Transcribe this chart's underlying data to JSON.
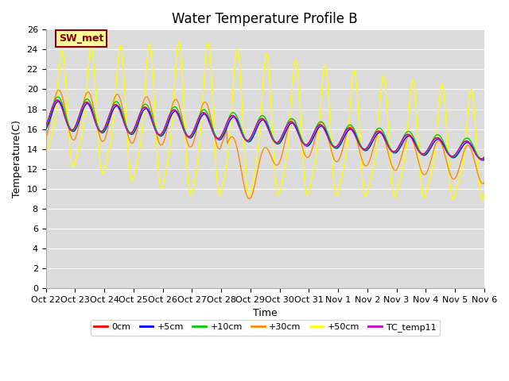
{
  "title": "Water Temperature Profile B",
  "xlabel": "Time",
  "ylabel": "Temperature(C)",
  "ylim": [
    0,
    26
  ],
  "yticks": [
    0,
    2,
    4,
    6,
    8,
    10,
    12,
    14,
    16,
    18,
    20,
    22,
    24,
    26
  ],
  "xtick_labels": [
    "Oct 22",
    "Oct 23",
    "Oct 24",
    "Oct 25",
    "Oct 26",
    "Oct 27",
    "Oct 28",
    "Oct 29",
    "Oct 30",
    "Oct 31",
    "Nov 1",
    "Nov 2",
    "Nov 3",
    "Nov 4",
    "Nov 5",
    "Nov 6"
  ],
  "annotation_text": "SW_met",
  "annotation_color": "#8B0000",
  "annotation_bg": "#FFFF99",
  "series_colors": {
    "0cm": "#FF0000",
    "+5cm": "#0000FF",
    "+10cm": "#00CC00",
    "+30cm": "#FF8C00",
    "+50cm": "#FFFF00",
    "TC_temp11": "#CC00CC"
  },
  "plot_bg": "#DCDCDC",
  "title_fontsize": 12,
  "axis_fontsize": 9,
  "tick_fontsize": 8
}
